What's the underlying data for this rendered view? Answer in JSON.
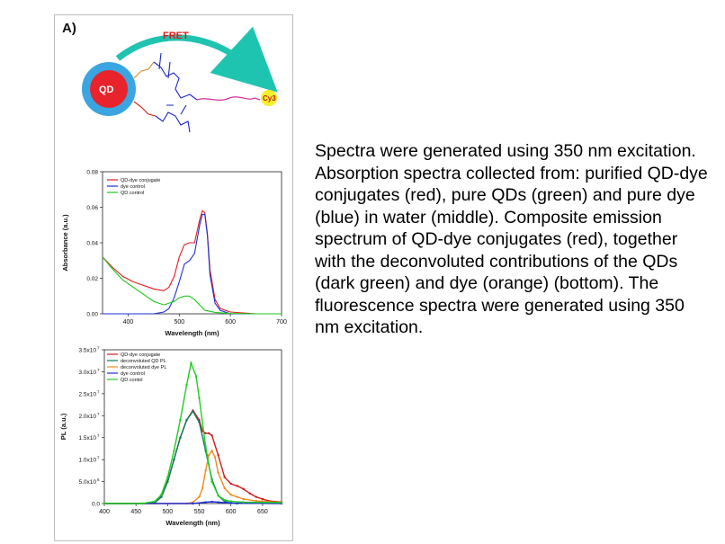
{
  "panel": {
    "label": "A)"
  },
  "schematic": {
    "fret_label": "FRET",
    "qd_label": "QD",
    "dye_label": "Cy3"
  },
  "caption": "Spectra were generated using 350 nm excitation. Absorption spectra collected from: purified QD-dye conjugates (red), pure QDs (green) and pure dye (blue) in water (middle). Composite  emission spectrum of QD-dye conjugates (red), together with the deconvoluted contributions of the QDs (dark green) and dye (orange) (bottom). The fluorescence spectra were generated using 350 nm excitation.",
  "chart_data": [
    {
      "type": "line",
      "xlabel": "Wavelength (nm)",
      "ylabel": "Absorbance (a.u.)",
      "xlim": [
        350,
        700
      ],
      "ylim": [
        0.0,
        0.08
      ],
      "xticks": [
        400,
        500,
        600,
        700
      ],
      "yticks": [
        0.0,
        0.02,
        0.04,
        0.06,
        0.08
      ],
      "ytick_labels": [
        "0.00",
        "0.02",
        "0.04",
        "0.06",
        "0.08"
      ],
      "legend_position": "top-left",
      "series": [
        {
          "name": "QD-dye conjugate",
          "color": "#e31a1c",
          "x": [
            350,
            370,
            390,
            410,
            430,
            450,
            470,
            480,
            490,
            500,
            510,
            520,
            530,
            540,
            545,
            550,
            555,
            560,
            570,
            580,
            600,
            650,
            700
          ],
          "y": [
            0.032,
            0.026,
            0.021,
            0.018,
            0.016,
            0.014,
            0.013,
            0.015,
            0.021,
            0.032,
            0.039,
            0.04,
            0.04,
            0.053,
            0.058,
            0.057,
            0.045,
            0.025,
            0.008,
            0.003,
            0.001,
            0.0,
            0.0
          ]
        },
        {
          "name": "dye control",
          "color": "#1f2fd6",
          "x": [
            350,
            450,
            470,
            480,
            490,
            500,
            510,
            520,
            530,
            540,
            545,
            550,
            555,
            560,
            570,
            580,
            600,
            650,
            700
          ],
          "y": [
            0.0,
            0.0,
            0.001,
            0.003,
            0.009,
            0.018,
            0.028,
            0.03,
            0.034,
            0.05,
            0.056,
            0.056,
            0.044,
            0.022,
            0.006,
            0.002,
            0.0,
            0.0,
            0.0
          ]
        },
        {
          "name": "QD control",
          "color": "#1ec81e",
          "x": [
            350,
            370,
            390,
            410,
            430,
            450,
            470,
            490,
            500,
            510,
            520,
            530,
            540,
            550,
            570,
            600,
            650,
            700
          ],
          "y": [
            0.032,
            0.025,
            0.019,
            0.015,
            0.011,
            0.007,
            0.005,
            0.007,
            0.009,
            0.01,
            0.01,
            0.008,
            0.005,
            0.002,
            0.0008,
            0.0002,
            0.0,
            0.0
          ]
        }
      ]
    },
    {
      "type": "line",
      "xlabel": "Wavelength (nm)",
      "ylabel": "PL (a.u.)",
      "xlim": [
        400,
        680
      ],
      "ylim": [
        0.0,
        35000000.0
      ],
      "xticks": [
        400,
        450,
        500,
        550,
        600,
        650
      ],
      "yticks": [
        0.0,
        5000000.0,
        10000000.0,
        15000000.0,
        20000000.0,
        25000000.0,
        30000000.0,
        35000000.0
      ],
      "ytick_labels": [
        "0.0",
        "5.0x10",
        "1.0x10",
        "1.5x10",
        "2.0x10",
        "2.5x10",
        "3.0x10",
        "3.5x10"
      ],
      "ytick_exponents": [
        "",
        "6",
        "7",
        "7",
        "7",
        "7",
        "7",
        "7"
      ],
      "legend_position": "top-left",
      "series": [
        {
          "name": "QD-dye conjugate",
          "color": "#d11a1a",
          "x": [
            400,
            460,
            480,
            490,
            500,
            510,
            520,
            530,
            540,
            550,
            555,
            560,
            565,
            570,
            580,
            590,
            600,
            610,
            620,
            630,
            640,
            650,
            660,
            680
          ],
          "y": [
            0,
            0,
            200000.0,
            1500000.0,
            5000000.0,
            10000000.0,
            15000000.0,
            19000000.0,
            21200000.0,
            19000000.0,
            16500000.0,
            16000000.0,
            16000000.0,
            15500000.0,
            11000000.0,
            6000000.0,
            4500000.0,
            4000000.0,
            3300000.0,
            2300000.0,
            1500000.0,
            1000000.0,
            600000.0,
            300000.0
          ]
        },
        {
          "name": "deconvoluted QD PL",
          "color": "#0b7a62",
          "x": [
            400,
            460,
            480,
            490,
            500,
            510,
            520,
            530,
            540,
            550,
            560,
            570,
            580,
            590,
            600,
            610
          ],
          "y": [
            0,
            0,
            200000.0,
            1500000.0,
            5000000.0,
            10000000.0,
            15000000.0,
            19000000.0,
            21000000.0,
            18500000.0,
            12000000.0,
            5500000.0,
            1800000.0,
            500000.0,
            100000.0,
            0
          ]
        },
        {
          "name": "deconvoluted dye PL",
          "color": "#f08c1e",
          "x": [
            400,
            530,
            540,
            550,
            555,
            560,
            565,
            570,
            575,
            580,
            590,
            600,
            610,
            620,
            640,
            660,
            680
          ],
          "y": [
            0,
            0,
            300000.0,
            1500000.0,
            3500000.0,
            7500000.0,
            11000000.0,
            12000000.0,
            10500000.0,
            7000000.0,
            3500000.0,
            2000000.0,
            1500000.0,
            1000000.0,
            600000.0,
            400000.0,
            200000.0
          ]
        },
        {
          "name": "dye control",
          "color": "#1f2fd6",
          "x": [
            400,
            540,
            560,
            570,
            580,
            600,
            680
          ],
          "y": [
            0,
            0,
            300000.0,
            400000.0,
            300000.0,
            100000.0,
            0
          ]
        },
        {
          "name": "QD contol",
          "color": "#22cc22",
          "x": [
            400,
            460,
            480,
            490,
            500,
            510,
            520,
            530,
            537,
            545,
            550,
            560,
            570,
            580,
            590,
            600,
            620,
            680
          ],
          "y": [
            0,
            0,
            500000.0,
            2000000.0,
            6000000.0,
            12000000.0,
            19000000.0,
            27000000.0,
            32000000.0,
            29000000.0,
            24000000.0,
            13000000.0,
            5000000.0,
            1800000.0,
            800000.0,
            500000.0,
            300000.0,
            200000.0
          ]
        }
      ]
    }
  ]
}
